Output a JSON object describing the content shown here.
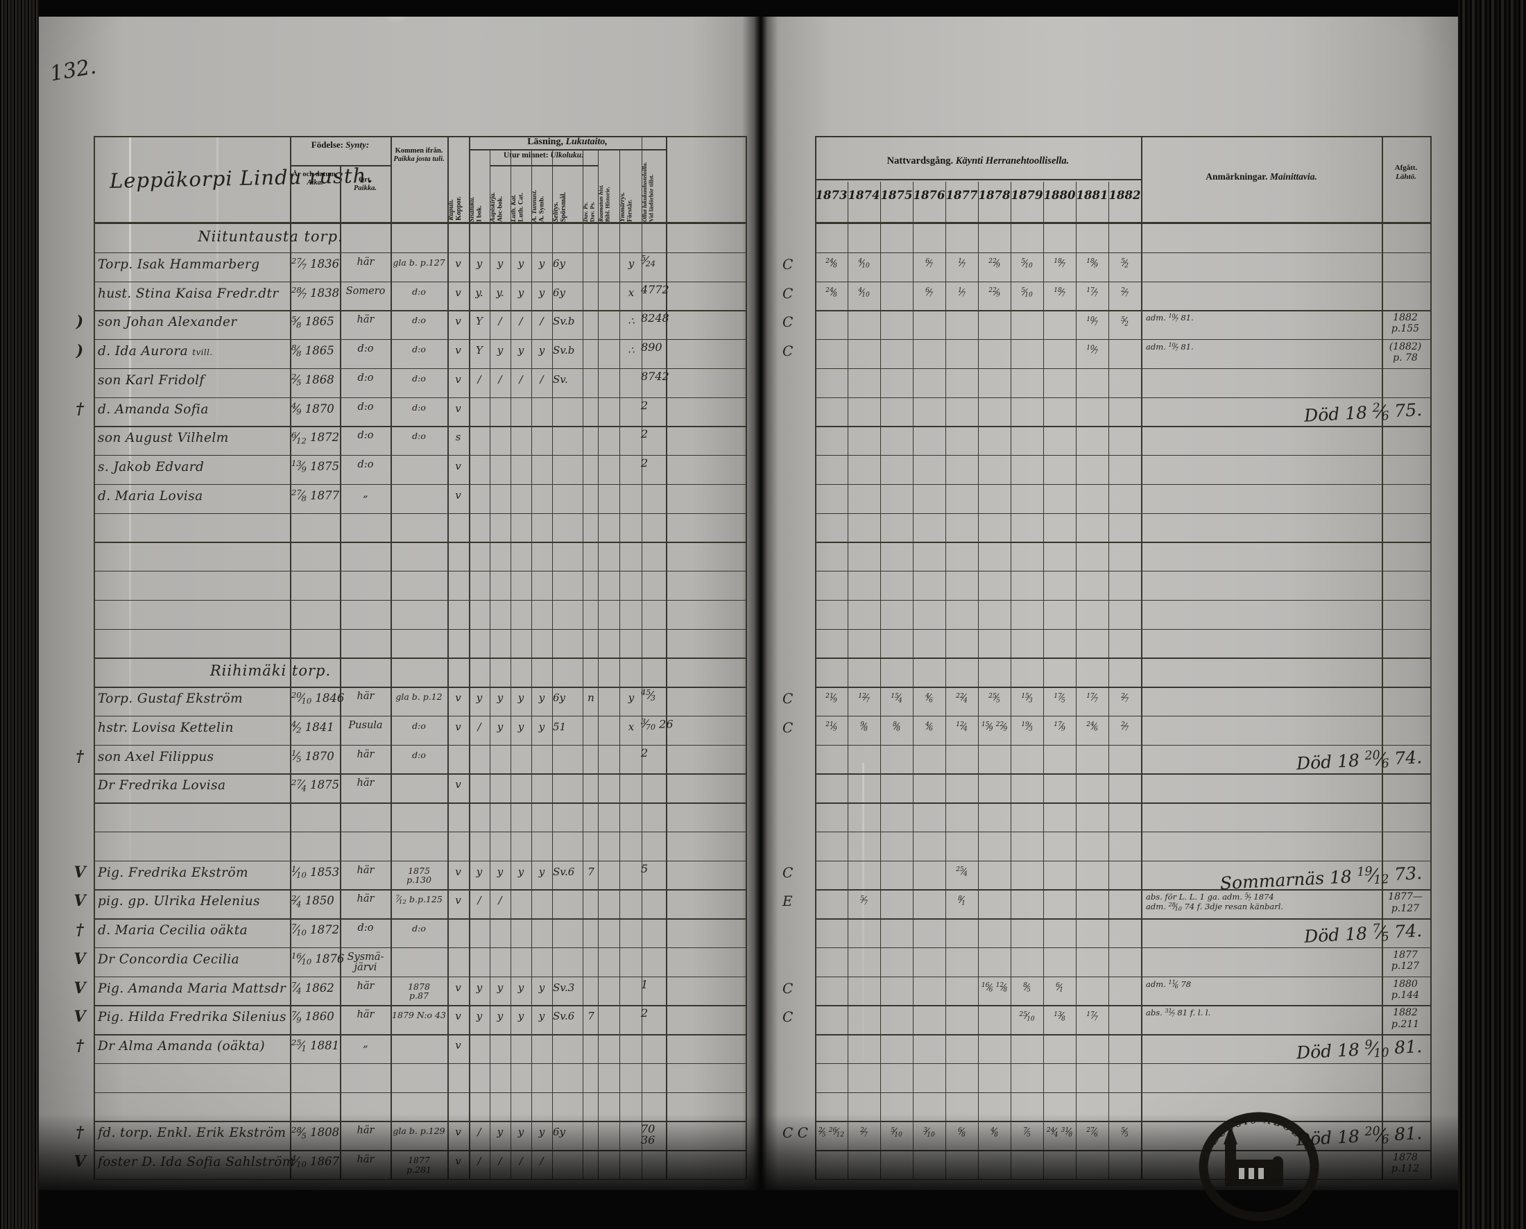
{
  "page": {
    "number": "132."
  },
  "book": {
    "left_title": "Leppäkorpi Lindu rusth.",
    "seal_text": "DIOECESIS ABOENSIS",
    "headers": {
      "fodelse": {
        "sv": "Födelse:",
        "fi": "Synty:"
      },
      "ar": {
        "sv": "År och datum.",
        "fi": "Aika."
      },
      "ort": {
        "sv": "Ort.",
        "fi": "Paikka."
      },
      "kommen": {
        "sv": "Kommen ifrån.",
        "fi": "Paikka josta tuli."
      },
      "koppor": {
        "sv": "Koppor.",
        "fi": "Rupuli."
      },
      "lasning": {
        "sv": "Läsning,",
        "fi": "Lukutaito,"
      },
      "utur": {
        "sv": "Utur minnet:",
        "fi": "Ulkoluku:"
      },
      "ibok": {
        "sv": "I bok.",
        "fi": "Sisäluku."
      },
      "abc": {
        "sv": "Abc-bok.",
        "fi": "Aapiskirja."
      },
      "luth": {
        "sv": "Luth. Cat.",
        "fi": "Luth. Kat."
      },
      "symb": {
        "sv": "A. Symb.",
        "fi": "A. Tunnust."
      },
      "spors": {
        "sv": "Spörsmål.",
        "fi": "Selitys."
      },
      "dav": {
        "sv": "Dav. Ps.",
        "fi": "Dav. Ps."
      },
      "bibl": {
        "sv": "Bibl. Historie.",
        "fi": "Raamatun hist."
      },
      "forstar": {
        "sv": "Förstår.",
        "fi": "Ymmärrys."
      },
      "vid": {
        "sv": "Vid läsförhör tillst.",
        "fi": "Ollut lukukuulusteloilla."
      },
      "nattvard": {
        "sv": "Nattvardsgång.",
        "fi": "Käynti Herranehtoollisella."
      },
      "anm": {
        "sv": "Anmärkningar.",
        "fi": "Mainittavia."
      },
      "afgatt": {
        "sv": "Afgått.",
        "fi": "Lähtö."
      }
    },
    "years": [
      "1873",
      "1874",
      "1875",
      "1876",
      "1877",
      "1878",
      "1879",
      "1880",
      "1881",
      "1882"
    ],
    "rows": [
      {
        "t": "sec",
        "label": "Niituntausta torp."
      },
      {
        "t": "p",
        "name": "Torp. Isak Hammarberg",
        "birth": "27/7 1836",
        "ort": "här",
        "kommen": "gla b. p.127",
        "kop": "v",
        "rm": [
          "y",
          "y",
          "y",
          "y"
        ],
        "sp": "6y",
        "fo": "y",
        "vid": "5/24",
        "cp": "C",
        "cm": [
          "24/8",
          "4/10",
          "",
          "6/7",
          "1/7",
          "22/9",
          "5/10",
          "18/7",
          "18/9",
          "5/2"
        ]
      },
      {
        "t": "p",
        "name": "hust. Stina Kaisa Fredr.dtr",
        "birth": "28/7 1838",
        "ort": "Somero",
        "kommen": "d:o",
        "kop": "v",
        "rm": [
          "y.",
          "y.",
          "y",
          "y"
        ],
        "sp": "6y",
        "fo": "x",
        "vid": "4772",
        "cp": "C",
        "cm": [
          "24/8",
          "4/10",
          "",
          "6/7",
          "1/7",
          "22/9",
          "5/10",
          "18/7",
          "17/7",
          "2/7"
        ]
      },
      {
        "t": "p",
        "m": ")",
        "name": "son Johan Alexander",
        "birth": "5/8 1865",
        "ort": "här",
        "kommen": "d:o",
        "kop": "v",
        "rm": [
          "Y",
          "/",
          "/",
          "/"
        ],
        "sp": "Sv.b",
        "fo": "∴",
        "vid": "8248",
        "cp": "C",
        "cm": [
          "",
          "",
          "",
          "",
          "",
          "",
          "",
          "",
          "10/7",
          "5/2"
        ],
        "anm": "adm. 10/7 81.",
        "afg": "1882|p.155"
      },
      {
        "t": "p",
        "m": ")",
        "name": "d. Ida Aurora",
        "note": "tvill.",
        "birth": "8/8 1865",
        "ort": "d:o",
        "kommen": "d:o",
        "kop": "v",
        "rm": [
          "Y",
          "y",
          "y",
          "y"
        ],
        "sp": "Sv.b",
        "fo": "∴",
        "vid": "890",
        "cp": "C",
        "cm": [
          "",
          "",
          "",
          "",
          "",
          "",
          "",
          "",
          "10/7",
          ""
        ],
        "anm": "adm. 10/7 81.",
        "afg": "(1882)|p. 78"
      },
      {
        "t": "p",
        "name": "son Karl Fridolf",
        "birth": "2/5 1868",
        "ort": "d:o",
        "kommen": "d:o",
        "kop": "v",
        "rm": [
          "/",
          "/",
          "/",
          "/"
        ],
        "sp": "Sv.",
        "vid": "8742"
      },
      {
        "t": "p",
        "m": "†",
        "name": "d. Amanda Sofia",
        "birth": "4/9 1870",
        "ort": "d:o",
        "kommen": "d:o",
        "kop": "v",
        "vid": "2",
        "anmR": "Död 18 2/6 75."
      },
      {
        "t": "p",
        "name": "son August Vilhelm",
        "birth": "6/12 1872",
        "ort": "d:o",
        "kommen": "d:o",
        "kop": "s",
        "vid": "2"
      },
      {
        "t": "p",
        "name": "s. Jakob Edvard",
        "birth": "13/9 1875",
        "ort": "d:o",
        "kop": "v",
        "vid": "2"
      },
      {
        "t": "p",
        "name": "d. Maria Lovisa",
        "birth": "27/8 1877",
        "ort": "„",
        "kop": "v"
      },
      {
        "t": "b"
      },
      {
        "t": "b"
      },
      {
        "t": "b"
      },
      {
        "t": "b"
      },
      {
        "t": "b"
      },
      {
        "t": "sec",
        "label": "Riihimäki torp."
      },
      {
        "t": "p",
        "name": "Torp. Gustaf Ekström",
        "birth": "20/10 1846",
        "ort": "här",
        "kommen": "gla b. p.12",
        "kop": "v",
        "rm": [
          "y",
          "y",
          "y",
          "y"
        ],
        "sp": "6y",
        "dav": "n",
        "fo": "y",
        "vid": "45/3",
        "cp": "C",
        "cm": [
          "21/9",
          "12/7",
          "15/4",
          "4/6",
          "22/4",
          "25/5",
          "15/3",
          "17/5",
          "17/7",
          "2/7"
        ]
      },
      {
        "t": "p",
        "name": "hstr. Lovisa Kettelin",
        "birth": "4/2 1841",
        "ort": "Pusula",
        "kommen": "d:o",
        "kop": "v",
        "rm": [
          "/",
          "y",
          "y",
          "y"
        ],
        "sp": "51",
        "fo": "x",
        "vid": "3/70 26",
        "cp": "C",
        "cm": [
          "21/9",
          "9/8",
          "8/8",
          "4/6",
          "12/4",
          "15/9 22/9",
          "19/3",
          "17/9",
          "24/6",
          "2/7"
        ]
      },
      {
        "t": "p",
        "m": "†",
        "name": "son Axel Filippus",
        "birth": "1/5 1870",
        "ort": "här",
        "kommen": "d:o",
        "vid": "2",
        "anmR": "Död 18 20/6 74."
      },
      {
        "t": "p",
        "name": "Dr Fredrika Lovisa",
        "birth": "27/4 1875",
        "ort": "här",
        "kop": "v"
      },
      {
        "t": "b"
      },
      {
        "t": "b"
      },
      {
        "t": "p",
        "m": "V",
        "name": "Pig. Fredrika Ekström",
        "birth": "1/10 1853",
        "ort": "här",
        "kommen": "1875|p.130",
        "kop": "v",
        "rm": [
          "y",
          "y",
          "y",
          "y"
        ],
        "sp": "Sv.6",
        "dav": "7",
        "vid": "5",
        "cp": "C",
        "cm": [
          "",
          "",
          "",
          "",
          "25/4",
          "",
          "",
          "",
          "",
          ""
        ],
        "anmR": "Sommarnäs 18 19/12 73."
      },
      {
        "t": "p",
        "m": "V",
        "name": "pig. gp. Ulrika Helenius",
        "birth": "2/4 1850",
        "ort": "här",
        "kommen": "7/12 b.p.125",
        "kop": "v",
        "rm": [
          "/",
          "/",
          "",
          ""
        ],
        "cp": "E",
        "cm": [
          "",
          "5/7",
          "",
          "",
          "8/1",
          "",
          "",
          "",
          "",
          ""
        ],
        "anm": "abs. för L. L. 1 ga. adm. 5/7 1874|adm. 28/10 74 f. 3dje resan känbarl.",
        "afg": "1877—|p.127"
      },
      {
        "t": "p",
        "m": "†",
        "name": "d. Maria Cecilia oäkta",
        "birth": "7/10 1872",
        "ort": "d:o",
        "kommen": "d:o",
        "anmR": "Död 18 7/5 74."
      },
      {
        "t": "p",
        "m": "V",
        "name": "Dr Concordia Cecilia",
        "birth": "16/10 1876",
        "ort": "Sysmä- järvi",
        "afg": "1877|p.127"
      },
      {
        "t": "p",
        "m": "V",
        "name": "Pig. Amanda Maria Mattsdr",
        "birth": "7/4 1862",
        "ort": "här",
        "kommen": "1878|p.87",
        "kop": "v",
        "rm": [
          "y",
          "y",
          "y",
          "y"
        ],
        "sp": "Sv.3",
        "vid": "1",
        "cp": "C",
        "cm": [
          "",
          "",
          "",
          "",
          "",
          "16/6 12/8",
          "8/5",
          "6/1",
          "",
          ""
        ],
        "anm": "adm. 11/6 78",
        "afg": "1880|p.144"
      },
      {
        "t": "p",
        "m": "V",
        "name": "Pig. Hilda Fredrika Silenius",
        "birth": "7/9 1860",
        "ort": "här",
        "kommen": "1879 N:o 43",
        "kop": "v",
        "rm": [
          "y",
          "y",
          "y",
          "y"
        ],
        "sp": "Sv.6",
        "dav": "7",
        "vid": "2",
        "cp": "C",
        "cm": [
          "",
          "",
          "",
          "",
          "",
          "",
          "25/10",
          "13/8",
          "17/7",
          ""
        ],
        "anm": "abs. 31/7 81 f. l. l.",
        "afg": "1882|p.211"
      },
      {
        "t": "p",
        "m": "†",
        "name": "Dr Alma Amanda (oäkta)",
        "birth": "25/1 1881",
        "ort": "„",
        "kop": "v",
        "anmR": "Död 18 9/10 81."
      },
      {
        "t": "b"
      },
      {
        "t": "b"
      },
      {
        "t": "p",
        "m": "†",
        "name": "fd. torp. Enkl. Erik Ekström",
        "birth": "28/5 1808",
        "ort": "här",
        "kommen": "gla b. p.129",
        "kop": "v",
        "rm": [
          "/",
          "y",
          "y",
          "y"
        ],
        "sp": "6y",
        "vid": "70|36",
        "cp": "C C",
        "cm": [
          "2/5 26/12",
          "2/7",
          "5/10",
          "3/10",
          "6/8",
          "4/8",
          "7/5",
          "24/4 31/8",
          "27/6",
          "5/5"
        ],
        "anmR": "Död 18 20/6 81."
      },
      {
        "t": "p",
        "m": "V",
        "name": "foster D. Ida Sofia Sahlström",
        "birth": "4/10 1867",
        "ort": "här",
        "kommen": "1877|p.281",
        "kop": "v",
        "rm": [
          "/",
          "/",
          "/",
          "/"
        ],
        "afg": "1878|p.112"
      }
    ]
  }
}
